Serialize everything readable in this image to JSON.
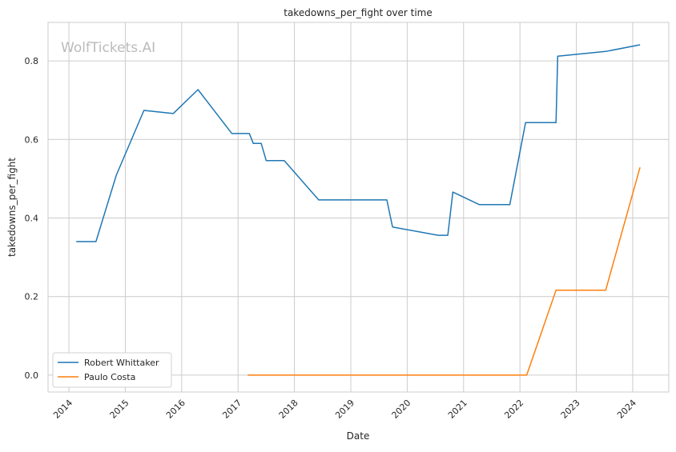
{
  "chart_data": {
    "type": "line",
    "title": "takedowns_per_fight over time",
    "xlabel": "Date",
    "ylabel": "takedowns_per_fight",
    "watermark": "WolfTickets.AI",
    "xlim": [
      2013.63,
      2024.64
    ],
    "ylim": [
      -0.043,
      0.898
    ],
    "x_ticks": [
      2014,
      2015,
      2016,
      2017,
      2018,
      2019,
      2020,
      2021,
      2022,
      2023,
      2024
    ],
    "x_tick_labels": [
      "2014",
      "2015",
      "2016",
      "2017",
      "2018",
      "2019",
      "2020",
      "2021",
      "2022",
      "2023",
      "2024"
    ],
    "y_ticks": [
      0.0,
      0.2,
      0.4,
      0.6,
      0.8
    ],
    "y_tick_labels": [
      "0.0",
      "0.2",
      "0.4",
      "0.6",
      "0.8"
    ],
    "grid": true,
    "legend_position": "bottom-left",
    "series": [
      {
        "name": "Robert Whittaker",
        "color": "#1f77b4",
        "x": [
          2014.13,
          2014.48,
          2014.84,
          2015.33,
          2015.85,
          2016.29,
          2016.89,
          2017.2,
          2017.27,
          2017.41,
          2017.5,
          2017.82,
          2018.43,
          2019.64,
          2019.74,
          2020.55,
          2020.72,
          2020.81,
          2021.28,
          2021.82,
          2022.1,
          2022.64,
          2022.67,
          2023.52,
          2024.13
        ],
        "y": [
          0.34,
          0.34,
          0.509,
          0.674,
          0.666,
          0.727,
          0.615,
          0.615,
          0.59,
          0.59,
          0.546,
          0.546,
          0.446,
          0.446,
          0.377,
          0.356,
          0.356,
          0.466,
          0.434,
          0.434,
          0.643,
          0.643,
          0.812,
          0.824,
          0.841
        ]
      },
      {
        "name": "Paulo Costa",
        "color": "#ff7f0e",
        "x": [
          2017.17,
          2022.12,
          2022.64,
          2023.52,
          2024.13
        ],
        "y": [
          0.0,
          0.0,
          0.216,
          0.216,
          0.529
        ]
      }
    ]
  }
}
